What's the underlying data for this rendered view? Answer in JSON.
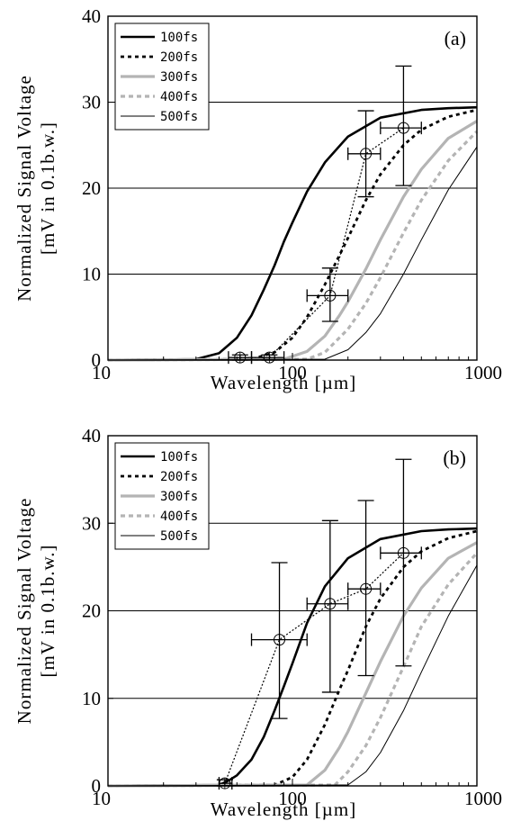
{
  "chart_data": [
    {
      "type": "line",
      "panel_label": "(a)",
      "xlabel": "Wavelength [µm]",
      "ylabel_line1": "Normalized Signal Voltage",
      "ylabel_line2": "[mV in 0.1b.w.]",
      "x_scale": "log",
      "xlim": [
        10,
        1000
      ],
      "ylim": [
        0,
        40
      ],
      "x_ticks": [
        10,
        100,
        1000
      ],
      "y_ticks": [
        0,
        10,
        20,
        30,
        40
      ],
      "grid": "horizontal",
      "legend_position": "top-left",
      "series": [
        {
          "name": "100fs",
          "style": "solid-thick-black",
          "color": "#000000",
          "x": [
            10,
            30,
            40,
            50,
            60,
            70,
            80,
            90,
            100,
            120,
            150,
            200,
            300,
            500,
            700,
            1000
          ],
          "y": [
            0,
            0.1,
            0.8,
            2.6,
            5.2,
            8.2,
            11.0,
            13.8,
            16.0,
            19.6,
            23.0,
            26.0,
            28.2,
            29.1,
            29.3,
            29.4
          ]
        },
        {
          "name": "200fs",
          "style": "dotted-thick-black",
          "color": "#000000",
          "x": [
            10,
            60,
            80,
            100,
            120,
            150,
            180,
            200,
            250,
            300,
            400,
            500,
            700,
            1000
          ],
          "y": [
            0,
            0.1,
            0.9,
            2.6,
            5.0,
            8.8,
            12.2,
            14.2,
            18.6,
            21.6,
            25.0,
            26.8,
            28.3,
            29.1
          ]
        },
        {
          "name": "300fs",
          "style": "solid-thick-gray",
          "color": "#b4b4b4",
          "x": [
            10,
            90,
            120,
            150,
            180,
            200,
            250,
            300,
            400,
            500,
            700,
            1000
          ],
          "y": [
            0,
            0.1,
            1.0,
            2.8,
            5.2,
            6.8,
            10.6,
            14.0,
            19.0,
            22.2,
            25.8,
            27.8
          ]
        },
        {
          "name": "400fs",
          "style": "dotted-thick-gray",
          "color": "#b4b4b4",
          "x": [
            10,
            120,
            150,
            200,
            250,
            300,
            400,
            500,
            700,
            1000
          ],
          "y": [
            0,
            0.1,
            0.9,
            3.6,
            6.6,
            9.6,
            14.8,
            18.6,
            23.2,
            26.6
          ]
        },
        {
          "name": "500fs",
          "style": "solid-thin-black",
          "color": "#000000",
          "x": [
            10,
            150,
            200,
            250,
            300,
            400,
            500,
            700,
            1000
          ],
          "y": [
            0,
            0.1,
            1.2,
            3.2,
            5.4,
            10.0,
            14.0,
            19.8,
            24.8
          ]
        }
      ],
      "measurements": {
        "x": [
          52,
          75,
          160,
          250,
          400
        ],
        "y": [
          0.3,
          0.3,
          7.5,
          24.0,
          27.0
        ],
        "x_err_low": [
          45,
          60,
          120,
          200,
          300
        ],
        "x_err_high": [
          60,
          90,
          200,
          300,
          500
        ],
        "y_err_low": [
          0,
          0,
          4.5,
          19.0,
          20.3
        ],
        "y_err_high": [
          0.6,
          0.6,
          10.7,
          29.0,
          34.2
        ]
      }
    },
    {
      "type": "line",
      "panel_label": "(b)",
      "xlabel": "Wavelength [µm]",
      "ylabel_line1": "Normalized Signal Voltage",
      "ylabel_line2": "[mV in 0.1b.w.]",
      "x_scale": "log",
      "xlim": [
        10,
        1000
      ],
      "ylim": [
        0,
        40
      ],
      "x_ticks": [
        10,
        100,
        1000
      ],
      "y_ticks": [
        0,
        10,
        20,
        30,
        40
      ],
      "grid": "horizontal",
      "legend_position": "top-left",
      "series": [
        {
          "name": "100fs",
          "style": "solid-thick-black",
          "color": "#000000",
          "x": [
            10,
            40,
            45,
            50,
            60,
            70,
            80,
            90,
            100,
            120,
            150,
            200,
            300,
            500,
            700,
            1000
          ],
          "y": [
            0,
            0.1,
            0.6,
            1.2,
            3.0,
            5.6,
            8.6,
            11.4,
            14.0,
            18.6,
            22.8,
            26.0,
            28.2,
            29.1,
            29.3,
            29.4
          ]
        },
        {
          "name": "200fs",
          "style": "dotted-thick-black",
          "color": "#000000",
          "x": [
            10,
            80,
            100,
            120,
            150,
            180,
            200,
            250,
            300,
            400,
            500,
            700,
            1000
          ],
          "y": [
            0,
            0.1,
            1.0,
            3.0,
            7.0,
            11.0,
            13.2,
            18.2,
            21.4,
            25.0,
            26.8,
            28.3,
            29.1
          ]
        },
        {
          "name": "300fs",
          "style": "solid-thick-gray",
          "color": "#b4b4b4",
          "x": [
            10,
            120,
            150,
            180,
            200,
            250,
            300,
            400,
            500,
            700,
            1000
          ],
          "y": [
            0,
            0.1,
            1.8,
            4.4,
            6.2,
            10.6,
            14.2,
            19.4,
            22.6,
            26.0,
            27.8
          ]
        },
        {
          "name": "400fs",
          "style": "dotted-thick-gray",
          "color": "#b4b4b4",
          "x": [
            10,
            170,
            200,
            250,
            300,
            400,
            500,
            700,
            1000
          ],
          "y": [
            0,
            0.1,
            1.6,
            4.6,
            7.8,
            13.6,
            18.2,
            23.0,
            26.6
          ]
        },
        {
          "name": "500fs",
          "style": "solid-thin-black",
          "color": "#000000",
          "x": [
            10,
            200,
            250,
            300,
            400,
            500,
            700,
            1000
          ],
          "y": [
            0,
            0.1,
            1.6,
            3.8,
            8.6,
            13.0,
            19.4,
            25.2
          ]
        }
      ],
      "measurements": {
        "x": [
          43,
          85,
          160,
          250,
          400
        ],
        "y": [
          0.3,
          16.7,
          20.8,
          22.5,
          26.6
        ],
        "x_err_low": [
          40,
          60,
          120,
          200,
          300
        ],
        "x_err_high": [
          47,
          120,
          200,
          300,
          500
        ],
        "y_err_low": [
          0,
          7.7,
          10.7,
          12.6,
          13.7
        ],
        "y_err_high": [
          0.7,
          25.5,
          30.3,
          32.6,
          37.3
        ]
      }
    }
  ]
}
